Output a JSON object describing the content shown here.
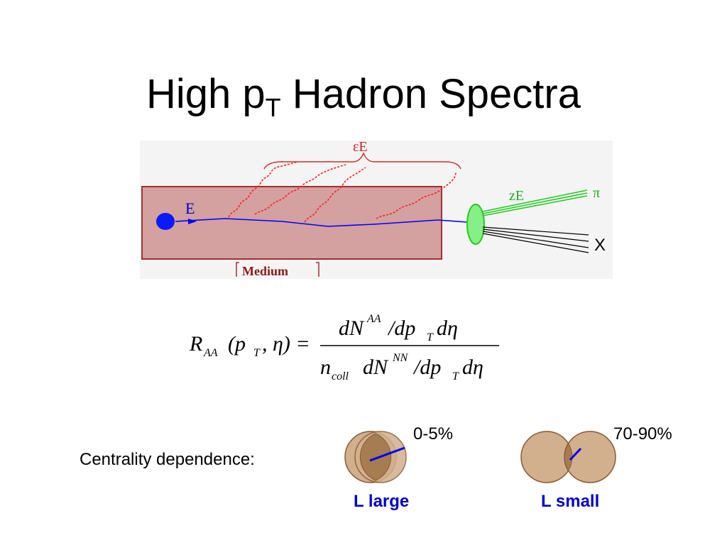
{
  "title": {
    "main": "High p",
    "sub": "T",
    "rest": " Hadron Spectra"
  },
  "diagram": {
    "epsilon_label": "εE",
    "energy_label": "E",
    "ze_label": "zE",
    "pi_label": "π",
    "x_label": "X",
    "medium_label": "Medium",
    "colors": {
      "medium_fill": "#d4a0a0",
      "medium_border": "#b03030",
      "parton": "#0000ff",
      "gluon": "#ff2020",
      "hadron": "#20cc20"
    }
  },
  "formula": {
    "lhs_R": "R",
    "lhs_sub": "AA",
    "lhs_args": "(p",
    "lhs_args_sub": "T",
    "lhs_args_rest": ", η) =",
    "num_dN": "dN",
    "num_sup": "AA",
    "num_dp": "/dp",
    "num_dp_sub": "T",
    "num_deta": "dη",
    "den_n": "n",
    "den_n_sub": "coll",
    "den_dN": "dN",
    "den_sup": "NN",
    "den_dp": "/dp",
    "den_dp_sub": "T",
    "den_deta": "dη"
  },
  "centrality": {
    "label": "Centrality dependence:",
    "central": {
      "percent": "0-5%",
      "path_length": "L large"
    },
    "peripheral": {
      "percent": "70-90%",
      "path_length": "L small"
    },
    "colors": {
      "nucleus": "#c8a080",
      "overlap": "#a07850",
      "path": "#0000ee"
    }
  }
}
